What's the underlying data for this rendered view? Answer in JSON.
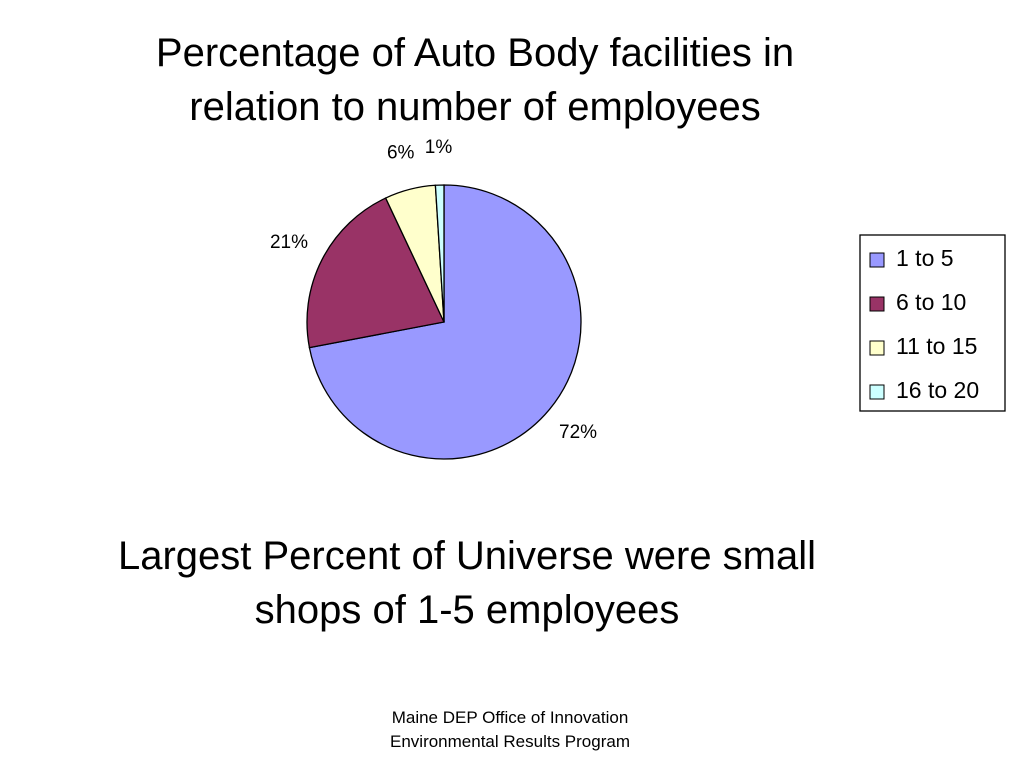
{
  "chart_data": {
    "type": "pie",
    "title": "Percentage of Auto Body facilities in relation to number of employees",
    "categories": [
      "1 to 5",
      "6 to 10",
      "11 to 15",
      "16 to 20"
    ],
    "values": [
      72,
      21,
      6,
      1
    ],
    "value_labels": [
      "72%",
      "21%",
      "6%",
      "1%"
    ],
    "colors": [
      "#9999ff",
      "#993366",
      "#ffffcc",
      "#ccffff"
    ],
    "legend": "right"
  },
  "caption": "Largest Percent of Universe were small shops of 1-5 employees",
  "footer": [
    "Maine DEP Office of Innovation",
    "Environmental Results Program"
  ]
}
